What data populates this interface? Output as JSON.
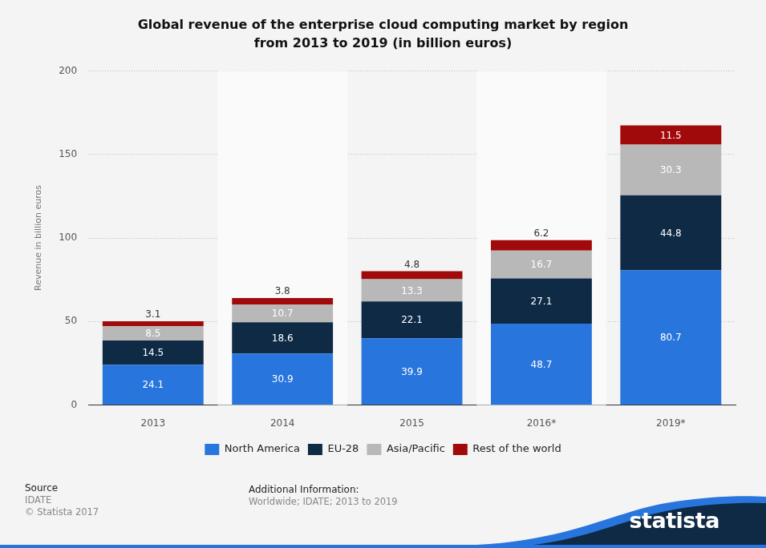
{
  "chart_data": {
    "type": "bar",
    "title": [
      "Global revenue of the enterprise cloud computing market by region",
      "from 2013 to 2019 (in billion euros)"
    ],
    "y_label": "Revenue in billion euros",
    "categories": [
      "2013",
      "2014",
      "2015",
      "2016*",
      "2019*"
    ],
    "series": [
      {
        "name": "North America",
        "color": "#2876dd",
        "values": [
          24.1,
          30.9,
          39.9,
          48.7,
          80.7
        ]
      },
      {
        "name": "EU-28",
        "color": "#0f2a45",
        "values": [
          14.5,
          18.6,
          22.1,
          27.1,
          44.8
        ]
      },
      {
        "name": "Asia/Pacific",
        "color": "#b8b8b8",
        "values": [
          8.5,
          10.7,
          13.3,
          16.7,
          30.3
        ]
      },
      {
        "name": "Rest of the world",
        "color": "#a10a0a",
        "values": [
          3.1,
          3.8,
          4.8,
          6.2,
          11.5
        ]
      }
    ],
    "ylim": [
      0,
      200
    ],
    "yticks": [
      0,
      50,
      100,
      150,
      200
    ],
    "grid": true,
    "stacked": true,
    "data_labels": true,
    "legend": "bottom",
    "footer": {
      "source_heading": "Source",
      "source": "IDATE",
      "copyright": "© Statista 2017",
      "info_heading": "Additional Information:",
      "info": "Worldwide; IDATE; 2013 to 2019",
      "brand": "statista"
    }
  }
}
